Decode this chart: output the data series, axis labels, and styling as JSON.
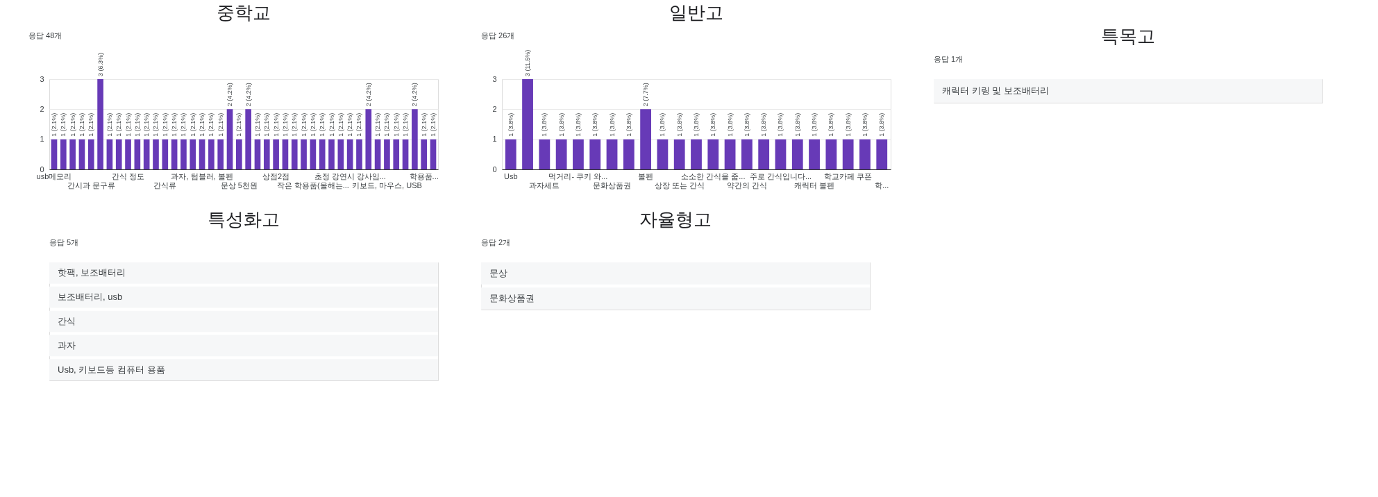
{
  "chart_data": [
    {
      "type": "bar",
      "title": "중학교",
      "subtitle": "응답 48개",
      "color": "#673ab7",
      "ylim": [
        0,
        3
      ],
      "yticks": [
        0,
        1,
        2,
        3
      ],
      "grid": "y",
      "categories": [
        "usb메모리",
        null,
        null,
        null,
        "간시과 문구류",
        null,
        null,
        null,
        "간식 정도",
        null,
        null,
        null,
        "간식류",
        null,
        null,
        null,
        "과자, 텀블러, 볼펜",
        null,
        null,
        null,
        "문상 5천원",
        null,
        null,
        null,
        "상점2점",
        null,
        null,
        null,
        "작은 학용품(올해는...",
        null,
        null,
        null,
        "초정 강연시 강사임...",
        null,
        null,
        null,
        "키보드, 마우스, USB",
        null,
        null,
        null,
        "학용품...",
        null
      ],
      "values": [
        1,
        1,
        1,
        1,
        1,
        3,
        1,
        1,
        1,
        1,
        1,
        1,
        1,
        1,
        1,
        1,
        1,
        1,
        1,
        2,
        1,
        2,
        1,
        1,
        1,
        1,
        1,
        1,
        1,
        1,
        1,
        1,
        1,
        1,
        2,
        1,
        1,
        1,
        1,
        2,
        1,
        1
      ],
      "value_labels": [
        "1 (2.1%)",
        "1 (2.1%)",
        "1 (2.1%)",
        "1 (2.1%)",
        "1 (2.1%)",
        "3 (6.3%)",
        "1 (2.1%)",
        "1 (2.1%)",
        "1 (2.1%)",
        "1 (2.1%)",
        "1 (2.1%)",
        "1 (2.1%)",
        "1 (2.1%)",
        "1 (2.1%)",
        "1 (2.1%)",
        "1 (2.1%)",
        "1 (2.1%)",
        "1 (2.1%)",
        "1 (2.1%)",
        "2 (4.2%)",
        "1 (2.1%)",
        "2 (4.2%)",
        "1 (2.1%)",
        "1 (2.1%)",
        "1 (2.1%)",
        "1 (2.1%)",
        "1 (2.1%)",
        "1 (2.1%)",
        "1 (2.1%)",
        "1 (2.1%)",
        "1 (2.1%)",
        "1 (2.1%)",
        "1 (2.1%)",
        "1 (2.1%)",
        "2 (4.2%)",
        "1 (2.1%)",
        "1 (2.1%)",
        "1 (2.1%)",
        "1 (2.1%)",
        "2 (4.2%)",
        "1 (2.1%)",
        "1 (2.1%)"
      ]
    },
    {
      "type": "bar",
      "title": "일반고",
      "subtitle": "응답 26개",
      "color": "#673ab7",
      "ylim": [
        0,
        3
      ],
      "yticks": [
        0,
        1,
        2,
        3
      ],
      "grid": "y",
      "categories": [
        "Usb",
        null,
        "과자세트",
        null,
        "먹거리- 쿠키 와...",
        null,
        "문화상품권",
        null,
        "볼펜",
        null,
        "상장 또는 간식",
        null,
        "소소한 간식을 줍...",
        null,
        "약간의 간식",
        null,
        "주로 간식입니다...",
        null,
        "캐릭터 볼펜",
        null,
        "학교카페 쿠폰",
        null,
        "학..."
      ],
      "values": [
        1,
        3,
        1,
        1,
        1,
        1,
        1,
        1,
        2,
        1,
        1,
        1,
        1,
        1,
        1,
        1,
        1,
        1,
        1,
        1,
        1,
        1,
        1
      ],
      "value_labels": [
        "1 (3.8%)",
        "3 (11.5%)",
        "1 (3.8%)",
        "1 (3.8%)",
        "1 (3.8%)",
        "1 (3.8%)",
        "1 (3.8%)",
        "1 (3.8%)",
        "2 (7.7%)",
        "1 (3.8%)",
        "1 (3.8%)",
        "1 (3.8%)",
        "1 (3.8%)",
        "1 (3.8%)",
        "1 (3.8%)",
        "1 (3.8%)",
        "1 (3.8%)",
        "1 (3.8%)",
        "1 (3.8%)",
        "1 (3.8%)",
        "1 (3.8%)",
        "1 (3.8%)",
        "1 (3.8%)"
      ]
    },
    {
      "type": "other",
      "title": "특목고",
      "subtitle": "응답 1개",
      "annotations": [
        "캐릭터 키링 및 보조배터리"
      ]
    },
    {
      "type": "other",
      "title": "특성화고",
      "subtitle": "응답 5개",
      "annotations": [
        "핫팩, 보조배터리",
        "보조배터리, usb",
        "간식",
        "과자",
        "Usb, 키보드등 컴퓨터 용품"
      ]
    },
    {
      "type": "other",
      "title": "자율형고",
      "subtitle": "응답 2개",
      "annotations": [
        "문상",
        "문화상품권"
      ]
    }
  ]
}
